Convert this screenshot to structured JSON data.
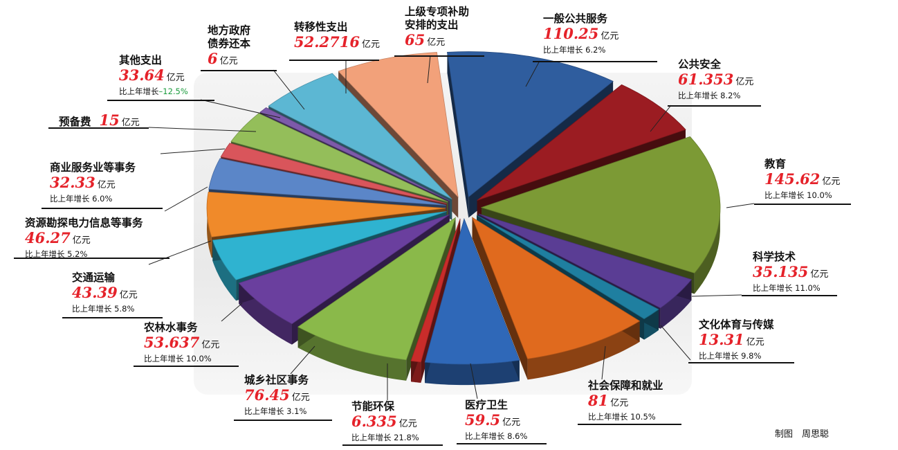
{
  "chart_data": {
    "type": "pie",
    "unit": "亿元",
    "growth_prefix": "比上年增长",
    "slices": [
      {
        "name": "一般公共服务",
        "value": 110.25,
        "value_label": "110.25",
        "growth": "6.2%",
        "color": "#2f5d9e"
      },
      {
        "name": "公共安全",
        "value": 61.353,
        "value_label": "61.353",
        "growth": "8.2%",
        "color": "#9b1c22"
      },
      {
        "name": "教育",
        "value": 145.62,
        "value_label": "145.62",
        "growth": "10.0%",
        "color": "#7c9a35"
      },
      {
        "name": "科学技术",
        "value": 35.135,
        "value_label": "35.135",
        "growth": "11.0%",
        "color": "#5a3d94"
      },
      {
        "name": "文化体育与传媒",
        "value": 13.31,
        "value_label": "13.31",
        "growth": "9.8%",
        "color": "#1f7fa0"
      },
      {
        "name": "社会保障和就业",
        "value": 81,
        "value_label": "81",
        "growth": "10.5%",
        "color": "#e06a1e"
      },
      {
        "name": "医疗卫生",
        "value": 59.5,
        "value_label": "59.5",
        "growth": "8.6%",
        "color": "#2f68b8"
      },
      {
        "name": "节能环保",
        "value": 6.335,
        "value_label": "6.335",
        "growth": "21.8%",
        "color": "#c92c2a"
      },
      {
        "name": "城乡社区事务",
        "value": 76.45,
        "value_label": "76.45",
        "growth": "3.1%",
        "color": "#8ab94a"
      },
      {
        "name": "农林水事务",
        "value": 53.637,
        "value_label": "53.637",
        "growth": "10.0%",
        "color": "#6a3f9e"
      },
      {
        "name": "交通运输",
        "value": 43.39,
        "value_label": "43.39",
        "growth": "5.8%",
        "color": "#2fb3d0"
      },
      {
        "name": "资源勘探电力信息等事务",
        "value": 46.27,
        "value_label": "46.27",
        "growth": "5.2%",
        "color": "#f08a2a"
      },
      {
        "name": "商业服务业等事务",
        "value": 32.33,
        "value_label": "32.33",
        "growth": "6.0%",
        "color": "#5b86c8"
      },
      {
        "name": "预备费",
        "value": 15,
        "value_label": "15",
        "growth": "",
        "color": "#d9555b"
      },
      {
        "name": "其他支出",
        "value": 33.64,
        "value_label": "33.64",
        "growth": "-12.5%",
        "color": "#94be5a"
      },
      {
        "name": "地方政府债券还本",
        "value": 6,
        "value_label": "6",
        "growth": "",
        "color": "#7d5aaa"
      },
      {
        "name": "转移性支出",
        "value": 52.2716,
        "value_label": "52.2716",
        "growth": "",
        "color": "#5cb7d3"
      },
      {
        "name": "上级专项补助安排的支出",
        "value": 65,
        "value_label": "65",
        "growth": "",
        "color": "#f2a17a"
      }
    ]
  },
  "credit": "制图　周思聪"
}
